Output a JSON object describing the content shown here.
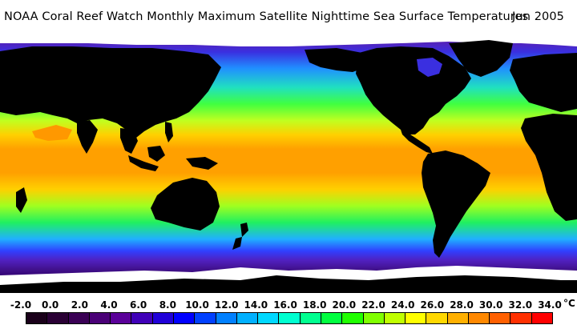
{
  "header": {
    "title": "NOAA Coral Reef Watch Monthly Maximum Satellite Nighttime Sea Surface Temperatures",
    "date": "Jun 2005"
  },
  "legend": {
    "unit": "°C",
    "ticks": [
      "-2.0",
      "0.0",
      "2.0",
      "4.0",
      "6.0",
      "8.0",
      "10.0",
      "12.0",
      "14.0",
      "16.0",
      "18.0",
      "20.0",
      "22.0",
      "24.0",
      "26.0",
      "28.0",
      "30.0",
      "32.0",
      "34.0"
    ],
    "colors": [
      "#1a001a",
      "#2a0035",
      "#3a0055",
      "#4a0077",
      "#5a0099",
      "#4000b8",
      "#2000d8",
      "#0000ff",
      "#0040ff",
      "#0080ff",
      "#00b0ff",
      "#00d8ff",
      "#00ffd0",
      "#00ff90",
      "#00ff40",
      "#20ff00",
      "#80ff00",
      "#c0ff00",
      "#ffff00",
      "#ffd800",
      "#ffb000",
      "#ff8800",
      "#ff6000",
      "#ff3000",
      "#ff0000"
    ]
  },
  "map": {
    "land_color": "#000000",
    "ice_color": "#ffffff"
  }
}
